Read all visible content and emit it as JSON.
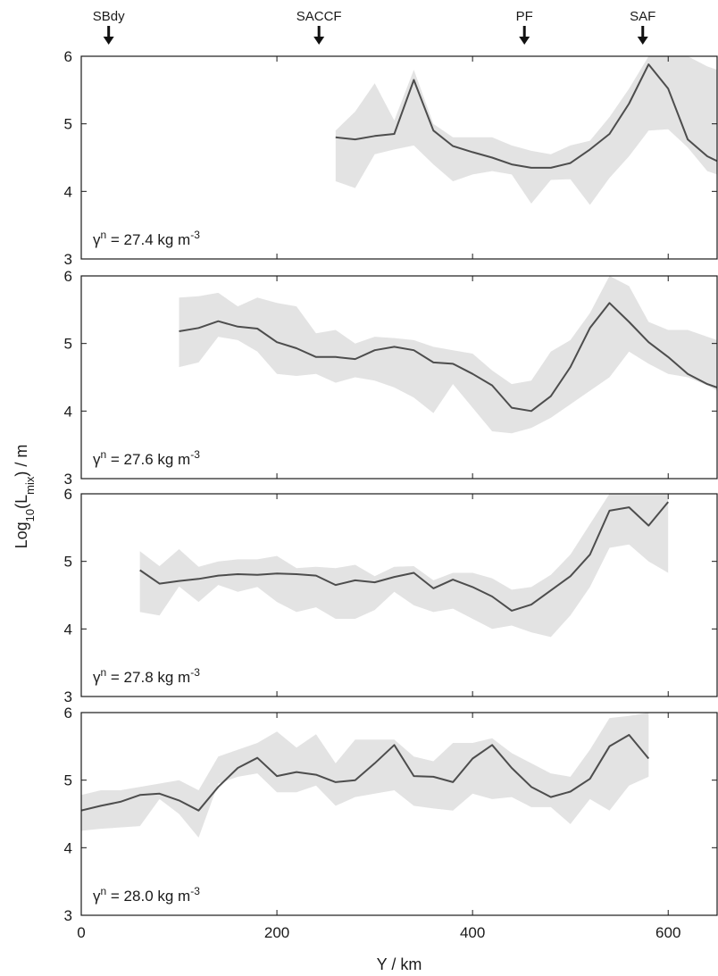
{
  "chart_data": {
    "type": "line",
    "xlabel": "Y / km",
    "ylabel_main": "Log",
    "ylabel_sub": "10",
    "ylabel_mid": "(L",
    "ylabel_sub2": "mix",
    "ylabel_end": ") / m",
    "xlim": [
      0,
      650
    ],
    "ylim": [
      3,
      6
    ],
    "x_ticks": [
      "0",
      "200",
      "400",
      "600"
    ],
    "y_ticks": [
      "3",
      "4",
      "5",
      "6"
    ],
    "colors": {
      "line": "#4d4d4d",
      "band": "#e3e3e3",
      "frame": "#1a1a1a"
    },
    "fronts": [
      {
        "label": "SBdy",
        "x": 28
      },
      {
        "label": "SACCF",
        "x": 243
      },
      {
        "label": "PF",
        "x": 453
      },
      {
        "label": "SAF",
        "x": 574
      }
    ],
    "panels": [
      {
        "label_prefix": "γ",
        "label_sup": "n",
        "label_mid": " = 27.4 kg m",
        "label_sup2": "-3",
        "series": {
          "x": [
            260,
            280,
            300,
            320,
            340,
            360,
            380,
            400,
            420,
            440,
            460,
            480,
            500,
            520,
            540,
            560,
            580,
            600,
            620,
            640,
            650
          ],
          "mean": [
            4.8,
            4.77,
            4.82,
            4.85,
            5.65,
            4.9,
            4.67,
            4.58,
            4.5,
            4.4,
            4.35,
            4.35,
            4.42,
            4.62,
            4.85,
            5.3,
            5.88,
            5.52,
            4.77,
            4.52,
            4.45
          ],
          "upper": [
            4.9,
            5.18,
            5.6,
            5.05,
            5.8,
            5.0,
            4.8,
            4.8,
            4.8,
            4.68,
            4.6,
            4.55,
            4.68,
            4.75,
            5.1,
            5.52,
            6.0,
            6.0,
            6.0,
            5.85,
            5.8
          ],
          "lower": [
            4.15,
            4.05,
            4.55,
            4.62,
            4.68,
            4.4,
            4.15,
            4.25,
            4.3,
            4.25,
            3.82,
            4.17,
            4.18,
            3.8,
            4.2,
            4.52,
            4.9,
            4.92,
            4.65,
            4.3,
            4.25
          ]
        }
      },
      {
        "label_prefix": "γ",
        "label_sup": "n",
        "label_mid": " = 27.6 kg m",
        "label_sup2": "-3",
        "series": {
          "x": [
            100,
            120,
            140,
            160,
            180,
            200,
            220,
            240,
            260,
            280,
            300,
            320,
            340,
            360,
            380,
            400,
            420,
            440,
            460,
            480,
            500,
            520,
            540,
            560,
            580,
            600,
            620,
            640,
            650
          ],
          "mean": [
            5.18,
            5.23,
            5.33,
            5.25,
            5.22,
            5.02,
            4.93,
            4.8,
            4.8,
            4.77,
            4.9,
            4.95,
            4.9,
            4.72,
            4.7,
            4.55,
            4.38,
            4.05,
            4.0,
            4.22,
            4.65,
            5.23,
            5.6,
            5.32,
            5.02,
            4.8,
            4.55,
            4.4,
            4.35
          ],
          "upper": [
            5.68,
            5.7,
            5.75,
            5.55,
            5.68,
            5.6,
            5.55,
            5.15,
            5.2,
            5.0,
            5.1,
            5.08,
            5.05,
            4.95,
            4.9,
            4.85,
            4.6,
            4.4,
            4.45,
            4.88,
            5.05,
            5.45,
            6.0,
            5.85,
            5.32,
            5.2,
            5.2,
            5.1,
            5.05
          ],
          "lower": [
            4.65,
            4.72,
            5.1,
            5.05,
            4.88,
            4.55,
            4.52,
            4.55,
            4.42,
            4.5,
            4.45,
            4.35,
            4.2,
            3.97,
            4.4,
            4.05,
            3.7,
            3.67,
            3.75,
            3.9,
            4.1,
            4.3,
            4.5,
            4.88,
            4.7,
            4.55,
            4.5,
            4.38,
            4.3
          ]
        }
      },
      {
        "label_prefix": "γ",
        "label_sup": "n",
        "label_mid": " = 27.8 kg m",
        "label_sup2": "-3",
        "series": {
          "x": [
            60,
            80,
            100,
            120,
            140,
            160,
            180,
            200,
            220,
            240,
            260,
            280,
            300,
            320,
            340,
            360,
            380,
            400,
            420,
            440,
            460,
            480,
            500,
            520,
            540,
            560,
            580,
            600
          ],
          "mean": [
            4.87,
            4.67,
            4.71,
            4.74,
            4.79,
            4.81,
            4.8,
            4.82,
            4.81,
            4.79,
            4.65,
            4.72,
            4.69,
            4.77,
            4.83,
            4.6,
            4.73,
            4.62,
            4.48,
            4.27,
            4.36,
            4.57,
            4.78,
            5.1,
            5.75,
            5.8,
            5.53,
            5.88
          ],
          "upper": [
            5.15,
            4.93,
            5.18,
            4.92,
            5.0,
            5.03,
            5.03,
            5.08,
            4.9,
            4.92,
            4.9,
            4.95,
            4.78,
            4.92,
            4.93,
            4.72,
            4.83,
            4.83,
            4.75,
            4.58,
            4.62,
            4.8,
            5.1,
            5.55,
            6.0,
            6.0,
            6.0,
            6.0
          ],
          "lower": [
            4.25,
            4.2,
            4.63,
            4.4,
            4.65,
            4.55,
            4.62,
            4.4,
            4.25,
            4.32,
            4.15,
            4.15,
            4.28,
            4.55,
            4.35,
            4.25,
            4.3,
            4.15,
            4.0,
            4.05,
            3.95,
            3.88,
            4.2,
            4.62,
            5.2,
            5.25,
            5.0,
            4.83
          ]
        }
      },
      {
        "label_prefix": "γ",
        "label_sup": "n",
        "label_mid": " = 28.0 kg m",
        "label_sup2": "-3",
        "series": {
          "x": [
            0,
            20,
            40,
            60,
            80,
            100,
            120,
            140,
            160,
            180,
            200,
            220,
            240,
            260,
            280,
            300,
            320,
            340,
            360,
            380,
            400,
            420,
            440,
            460,
            480,
            500,
            520,
            540,
            560,
            580
          ],
          "mean": [
            4.55,
            4.62,
            4.68,
            4.78,
            4.8,
            4.7,
            4.55,
            4.9,
            5.18,
            5.33,
            5.06,
            5.12,
            5.08,
            4.97,
            5.0,
            5.25,
            5.52,
            5.06,
            5.05,
            4.97,
            5.32,
            5.52,
            5.18,
            4.9,
            4.75,
            4.83,
            5.02,
            5.5,
            5.67,
            5.32
          ],
          "upper": [
            4.78,
            4.85,
            4.85,
            4.9,
            4.95,
            5.0,
            4.85,
            5.35,
            5.45,
            5.55,
            5.72,
            5.48,
            5.68,
            5.25,
            5.6,
            5.6,
            5.6,
            5.35,
            5.28,
            5.55,
            5.55,
            5.62,
            5.4,
            5.25,
            5.1,
            5.05,
            5.45,
            5.92,
            5.95,
            6.0
          ],
          "lower": [
            4.25,
            4.28,
            4.3,
            4.32,
            4.72,
            4.5,
            4.15,
            4.95,
            5.05,
            5.1,
            4.82,
            4.82,
            4.92,
            4.62,
            4.75,
            4.8,
            4.85,
            4.62,
            4.58,
            4.55,
            4.8,
            4.72,
            4.75,
            4.6,
            4.6,
            4.35,
            4.72,
            4.55,
            4.92,
            5.05
          ]
        }
      }
    ]
  }
}
